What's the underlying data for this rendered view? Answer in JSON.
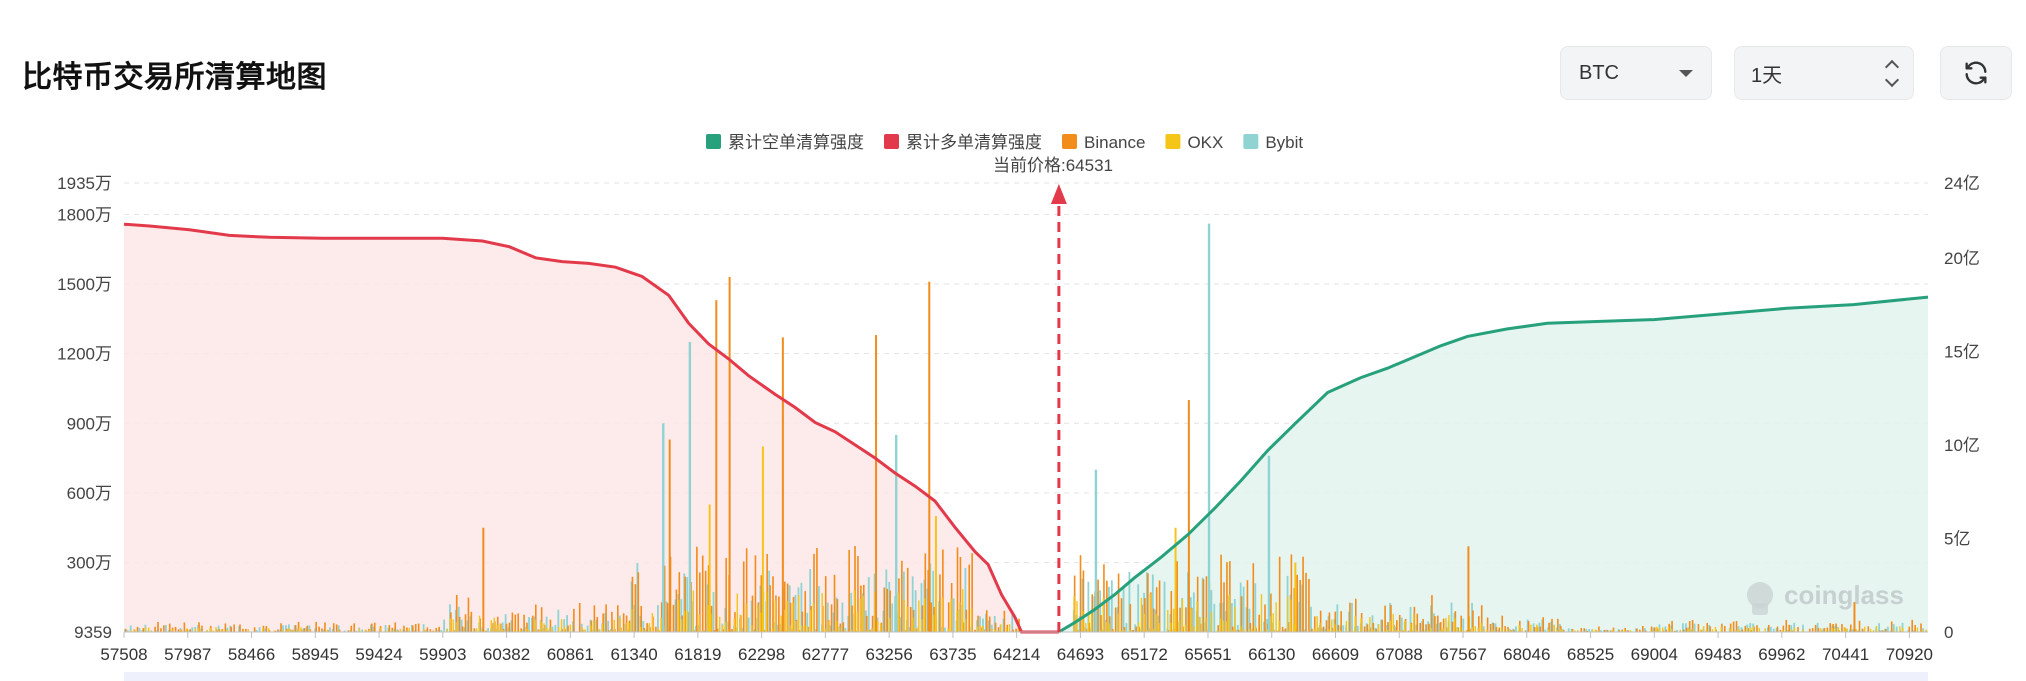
{
  "header": {
    "title": "比特币交易所清算地图",
    "coin_select": "BTC",
    "range_select": "1天",
    "refresh_icon": "refresh-icon"
  },
  "watermark": "coinglass",
  "colors": {
    "short_cum": "#26a17b",
    "long_cum": "#e23a4a",
    "binance": "#f28c1a",
    "okx": "#f5c518",
    "bybit": "#8fd3d3",
    "long_fill": "#fde6e8",
    "short_fill": "#e3f3ee"
  },
  "chart_data": {
    "type": "bar",
    "current_price_label": "当前价格:64531",
    "current_price": 64531,
    "legend": [
      "累计空单清算强度",
      "累计多单清算强度",
      "Binance",
      "OKX",
      "Bybit"
    ],
    "x_ticks": [
      "57508",
      "57987",
      "58466",
      "58945",
      "59424",
      "59903",
      "60382",
      "60861",
      "61340",
      "61819",
      "62298",
      "62777",
      "63256",
      "63735",
      "64214",
      "64693",
      "65172",
      "65651",
      "66130",
      "66609",
      "67088",
      "67567",
      "68046",
      "68525",
      "69004",
      "69483",
      "69962",
      "70441",
      "70920"
    ],
    "x_range": [
      57508,
      71060
    ],
    "y_left_ticks": [
      "9359",
      "300万",
      "600万",
      "900万",
      "1200万",
      "1500万",
      "1800万",
      "1935万"
    ],
    "y_left_range": [
      9359,
      19350000
    ],
    "y_right_ticks": [
      "0",
      "5亿",
      "10亿",
      "15亿",
      "20亿",
      "24亿"
    ],
    "y_right_range": [
      0,
      2400000000
    ],
    "series": [
      {
        "name": "累计多单清算强度",
        "axis": "right",
        "points": [
          [
            57508,
            2180000000
          ],
          [
            57700,
            2170000000
          ],
          [
            58000,
            2150000000
          ],
          [
            58300,
            2120000000
          ],
          [
            58600,
            2110000000
          ],
          [
            59000,
            2105000000
          ],
          [
            59500,
            2105000000
          ],
          [
            59900,
            2105000000
          ],
          [
            60200,
            2090000000
          ],
          [
            60400,
            2060000000
          ],
          [
            60600,
            2000000000
          ],
          [
            60800,
            1980000000
          ],
          [
            61000,
            1970000000
          ],
          [
            61200,
            1950000000
          ],
          [
            61400,
            1900000000
          ],
          [
            61600,
            1800000000
          ],
          [
            61750,
            1650000000
          ],
          [
            61900,
            1540000000
          ],
          [
            62050,
            1460000000
          ],
          [
            62200,
            1370000000
          ],
          [
            62400,
            1270000000
          ],
          [
            62550,
            1200000000
          ],
          [
            62700,
            1120000000
          ],
          [
            62850,
            1070000000
          ],
          [
            63000,
            1000000000
          ],
          [
            63150,
            930000000
          ],
          [
            63300,
            850000000
          ],
          [
            63450,
            780000000
          ],
          [
            63600,
            700000000
          ],
          [
            63750,
            560000000
          ],
          [
            63900,
            430000000
          ],
          [
            64000,
            360000000
          ],
          [
            64100,
            200000000
          ],
          [
            64200,
            80000000
          ],
          [
            64250,
            0
          ],
          [
            64531,
            0
          ]
        ]
      },
      {
        "name": "累计空单清算强度",
        "axis": "right",
        "points": [
          [
            64531,
            0
          ],
          [
            64650,
            50000000
          ],
          [
            64800,
            120000000
          ],
          [
            64950,
            200000000
          ],
          [
            65100,
            290000000
          ],
          [
            65300,
            400000000
          ],
          [
            65500,
            520000000
          ],
          [
            65700,
            660000000
          ],
          [
            65900,
            810000000
          ],
          [
            66100,
            970000000
          ],
          [
            66300,
            1110000000
          ],
          [
            66550,
            1280000000
          ],
          [
            66800,
            1360000000
          ],
          [
            67000,
            1410000000
          ],
          [
            67200,
            1470000000
          ],
          [
            67400,
            1530000000
          ],
          [
            67600,
            1580000000
          ],
          [
            67900,
            1620000000
          ],
          [
            68200,
            1650000000
          ],
          [
            68600,
            1660000000
          ],
          [
            69000,
            1670000000
          ],
          [
            69500,
            1700000000
          ],
          [
            70000,
            1730000000
          ],
          [
            70500,
            1750000000
          ],
          [
            71060,
            1790000000
          ]
        ]
      },
      {
        "name": "Binance",
        "axis": "left",
        "peaks": [
          [
            62050,
            15300000
          ],
          [
            63550,
            15100000
          ],
          [
            61950,
            14300000
          ],
          [
            62450,
            12700000
          ],
          [
            63150,
            12800000
          ],
          [
            65500,
            10000000
          ],
          [
            61600,
            8300000
          ],
          [
            60200,
            4500000
          ],
          [
            67600,
            3700000
          ],
          [
            70500,
            1300000
          ]
        ]
      },
      {
        "name": "OKX",
        "axis": "left",
        "peaks": [
          [
            62300,
            8000000
          ],
          [
            61900,
            5500000
          ],
          [
            63600,
            5000000
          ],
          [
            65400,
            4500000
          ],
          [
            66300,
            3000000
          ]
        ]
      },
      {
        "name": "Bybit",
        "axis": "left",
        "peaks": [
          [
            65650,
            17600000
          ],
          [
            61750,
            12500000
          ],
          [
            61550,
            9000000
          ],
          [
            63300,
            8500000
          ],
          [
            66100,
            7600000
          ],
          [
            64800,
            7000000
          ]
        ]
      }
    ]
  }
}
